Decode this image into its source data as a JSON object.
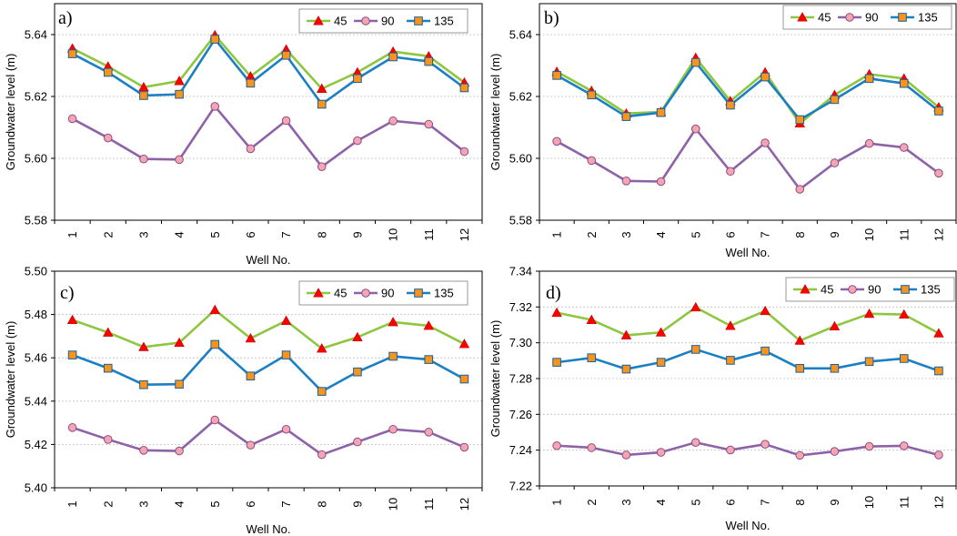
{
  "figure": {
    "colors": {
      "s45_line": "#8DC63F",
      "s45_marker": "#FF0000",
      "s90_line": "#8E62A8",
      "s90_marker": "#F4A6B0",
      "s135_line": "#1B7FC4",
      "s135_marker": "#F7941D",
      "grid": "#BFBFBF"
    }
  },
  "chart_data": [
    {
      "type": "line",
      "panel_label": "a)",
      "title": "",
      "xlabel": "Well No.",
      "ylabel": "Groundwater level (m)",
      "categories": [
        "1",
        "2",
        "3",
        "4",
        "5",
        "6",
        "7",
        "8",
        "9",
        "10",
        "11",
        "12"
      ],
      "ylim": [
        5.58,
        5.65
      ],
      "yticks": [
        "5.58",
        "5.60",
        "5.62",
        "5.64"
      ],
      "ytick_values": [
        5.58,
        5.6,
        5.62,
        5.64
      ],
      "grid": true,
      "legend_position": "top-right",
      "series": [
        {
          "name": "45",
          "values": [
            5.6355,
            5.6297,
            5.623,
            5.625,
            5.6398,
            5.6265,
            5.6352,
            5.6225,
            5.6278,
            5.6345,
            5.633,
            5.6245
          ]
        },
        {
          "name": "90",
          "values": [
            5.6128,
            5.6066,
            5.5998,
            5.5996,
            5.6168,
            5.6031,
            5.6122,
            5.5973,
            5.6057,
            5.6121,
            5.611,
            5.6022
          ]
        },
        {
          "name": "135",
          "values": [
            5.6338,
            5.6278,
            5.6203,
            5.6207,
            5.6385,
            5.6243,
            5.6333,
            5.6175,
            5.6258,
            5.6328,
            5.6313,
            5.6228
          ]
        }
      ]
    },
    {
      "type": "line",
      "panel_label": "b)",
      "title": "",
      "xlabel": "Well No.",
      "ylabel": "Groundwater level (m)",
      "categories": [
        "1",
        "2",
        "3",
        "4",
        "5",
        "6",
        "7",
        "8",
        "9",
        "10",
        "11",
        "12"
      ],
      "ylim": [
        5.58,
        5.65
      ],
      "yticks": [
        "5.58",
        "5.60",
        "5.62",
        "5.64"
      ],
      "ytick_values": [
        5.58,
        5.6,
        5.62,
        5.64
      ],
      "grid": true,
      "legend_position": "top-right",
      "series": [
        {
          "name": "45",
          "values": [
            5.628,
            5.6218,
            5.6145,
            5.615,
            5.6325,
            5.6185,
            5.6278,
            5.6113,
            5.6205,
            5.6272,
            5.6258,
            5.6165
          ]
        },
        {
          "name": "90",
          "values": [
            5.6055,
            5.5993,
            5.5927,
            5.5925,
            5.6095,
            5.5958,
            5.605,
            5.59,
            5.5985,
            5.6048,
            5.6035,
            5.5952
          ]
        },
        {
          "name": "135",
          "values": [
            5.6268,
            5.6205,
            5.6135,
            5.6148,
            5.631,
            5.6172,
            5.6263,
            5.6125,
            5.619,
            5.6258,
            5.6242,
            5.6153
          ]
        }
      ]
    },
    {
      "type": "line",
      "panel_label": "c)",
      "title": "",
      "xlabel": "Well No.",
      "ylabel": "Groundwater level (m)",
      "categories": [
        "1",
        "2",
        "3",
        "4",
        "5",
        "6",
        "7",
        "8",
        "9",
        "10",
        "11",
        "12"
      ],
      "ylim": [
        5.4,
        5.5
      ],
      "yticks": [
        "5.40",
        "5.42",
        "5.44",
        "5.46",
        "5.48",
        "5.50"
      ],
      "ytick_values": [
        5.4,
        5.42,
        5.44,
        5.46,
        5.48,
        5.5
      ],
      "grid": true,
      "legend_position": "top-right",
      "series": [
        {
          "name": "45",
          "values": [
            5.4775,
            5.4717,
            5.465,
            5.467,
            5.4821,
            5.469,
            5.4771,
            5.4643,
            5.4695,
            5.4765,
            5.4748,
            5.4664
          ]
        },
        {
          "name": "90",
          "values": [
            5.4278,
            5.4223,
            5.4173,
            5.417,
            5.4313,
            5.4197,
            5.427,
            5.4153,
            5.4212,
            5.427,
            5.4257,
            5.4187
          ]
        },
        {
          "name": "135",
          "values": [
            5.4613,
            5.4552,
            5.4476,
            5.4478,
            5.4662,
            5.4516,
            5.4613,
            5.4445,
            5.4535,
            5.4607,
            5.4592,
            5.4502
          ]
        }
      ]
    },
    {
      "type": "line",
      "panel_label": "d)",
      "title": "",
      "xlabel": "Well No.",
      "ylabel": "Groundwater level (m)",
      "categories": [
        "1",
        "2",
        "3",
        "4",
        "5",
        "6",
        "7",
        "8",
        "9",
        "10",
        "11",
        "12"
      ],
      "ylim": [
        7.22,
        7.34
      ],
      "yticks": [
        "7.22",
        "7.24",
        "7.26",
        "7.28",
        "7.30",
        "7.32",
        "7.34"
      ],
      "ytick_values": [
        7.22,
        7.24,
        7.26,
        7.28,
        7.3,
        7.32,
        7.34
      ],
      "grid": true,
      "legend_position": "top-right",
      "series": [
        {
          "name": "45",
          "values": [
            7.3168,
            7.3128,
            7.3042,
            7.3058,
            7.3198,
            7.3095,
            7.3178,
            7.3012,
            7.3092,
            7.3162,
            7.3158,
            7.3053
          ]
        },
        {
          "name": "90",
          "values": [
            7.2425,
            7.2414,
            7.2373,
            7.2388,
            7.2443,
            7.2401,
            7.2433,
            7.2371,
            7.2393,
            7.2421,
            7.2424,
            7.2373
          ]
        },
        {
          "name": "135",
          "values": [
            7.2891,
            7.2916,
            7.2853,
            7.2891,
            7.2963,
            7.2902,
            7.2954,
            7.2857,
            7.2857,
            7.2895,
            7.2912,
            7.2843
          ]
        }
      ]
    }
  ]
}
